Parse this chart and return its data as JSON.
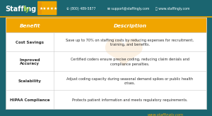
{
  "bg_color": "#1b6570",
  "table_bg": "#ffffff",
  "header_bg": "#f0a500",
  "header_text_color": "#ffffff",
  "cell_border_color": "#cccccc",
  "benefit_text_color": "#2c2c2c",
  "desc_text_color": "#2c2c2c",
  "header_row": [
    "Benefit",
    "Description"
  ],
  "rows": [
    [
      "Cost Savings",
      "Save up to 70% on staffing costs by reducing expenses for recruitment,\ntraining, and benefits."
    ],
    [
      "Improved\nAccuracy",
      "Certified coders ensure precise coding, reducing claim denials and\ncompliance penalties."
    ],
    [
      "Scalability",
      "Adjust coding capacity during seasonal demand spikes or public health\ncrises."
    ],
    [
      "HIPAA Compliance",
      "Protects patient information and meets regulatory requirements."
    ]
  ],
  "header_bar_bg": "#1b6570",
  "logo_green": "#8cc63f",
  "star_color": "#f0a500",
  "watermark_color": "#f5cfa0",
  "footer_text": "www.staffingly.com",
  "footer_color": "#f0a500"
}
